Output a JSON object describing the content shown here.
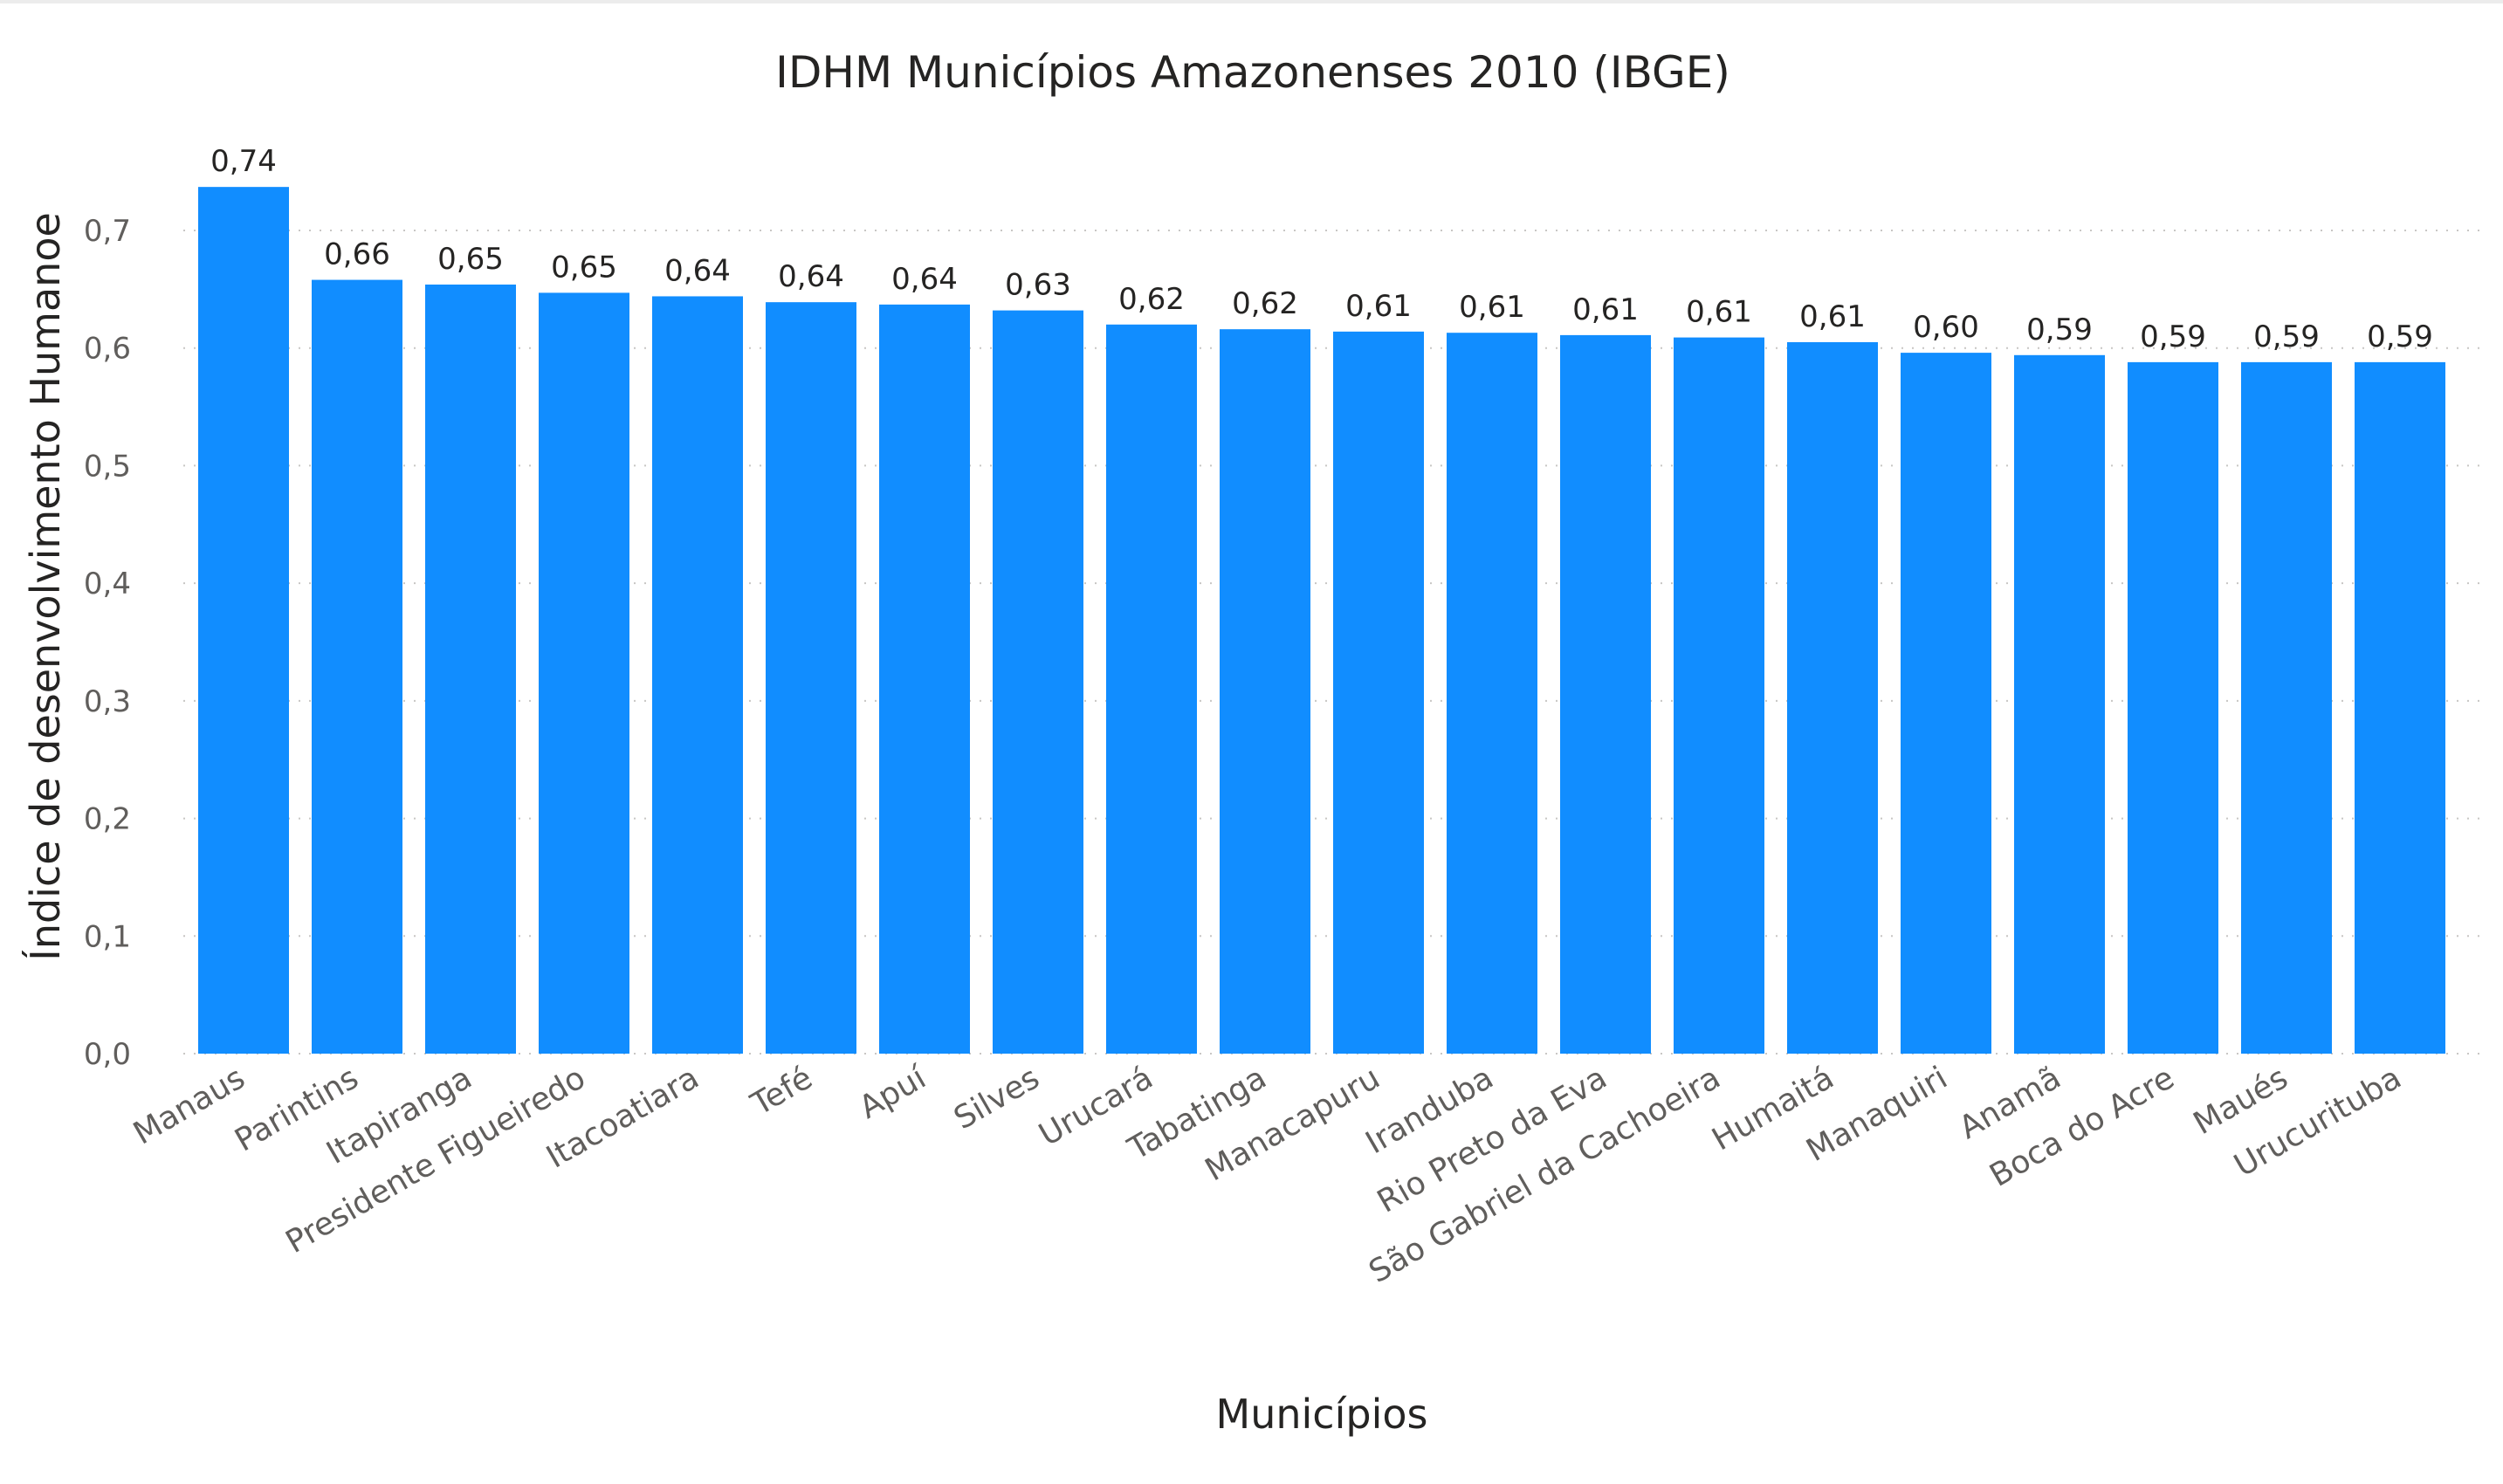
{
  "chart_data": {
    "type": "bar",
    "title": "IDHM Municípios Amazonenses 2010 (IBGE)",
    "xlabel": "Municípios",
    "ylabel": "Índice de desenvolvimento Humanoe",
    "ylim": [
      0,
      0.75
    ],
    "yticks": [
      0,
      0.1,
      0.2,
      0.3,
      0.4,
      0.5,
      0.6,
      0.7
    ],
    "ytick_labels": [
      "0,0",
      "0,1",
      "0,2",
      "0,3",
      "0,4",
      "0,5",
      "0,6",
      "0,7"
    ],
    "grid": true,
    "bar_color": "#118DFF",
    "categories": [
      "Manaus",
      "Parintins",
      "Itapiranga",
      "Presidente Figueiredo",
      "Itacoatiara",
      "Tefé",
      "Apuí",
      "Silves",
      "Urucará",
      "Tabatinga",
      "Manacapuru",
      "Iranduba",
      "Rio Preto da Eva",
      "São Gabriel da Cachoeira",
      "Humaitá",
      "Manaquiri",
      "Anamã",
      "Boca do Acre",
      "Maués",
      "Urucurituba"
    ],
    "values": [
      0.737,
      0.658,
      0.654,
      0.647,
      0.644,
      0.639,
      0.637,
      0.632,
      0.62,
      0.616,
      0.614,
      0.613,
      0.611,
      0.609,
      0.605,
      0.596,
      0.594,
      0.588,
      0.588,
      0.588
    ],
    "value_labels": [
      "0,74",
      "0,66",
      "0,65",
      "0,65",
      "0,64",
      "0,64",
      "0,64",
      "0,63",
      "0,62",
      "0,62",
      "0,61",
      "0,61",
      "0,61",
      "0,61",
      "0,61",
      "0,60",
      "0,59",
      "0,59",
      "0,59",
      "0,59"
    ]
  }
}
